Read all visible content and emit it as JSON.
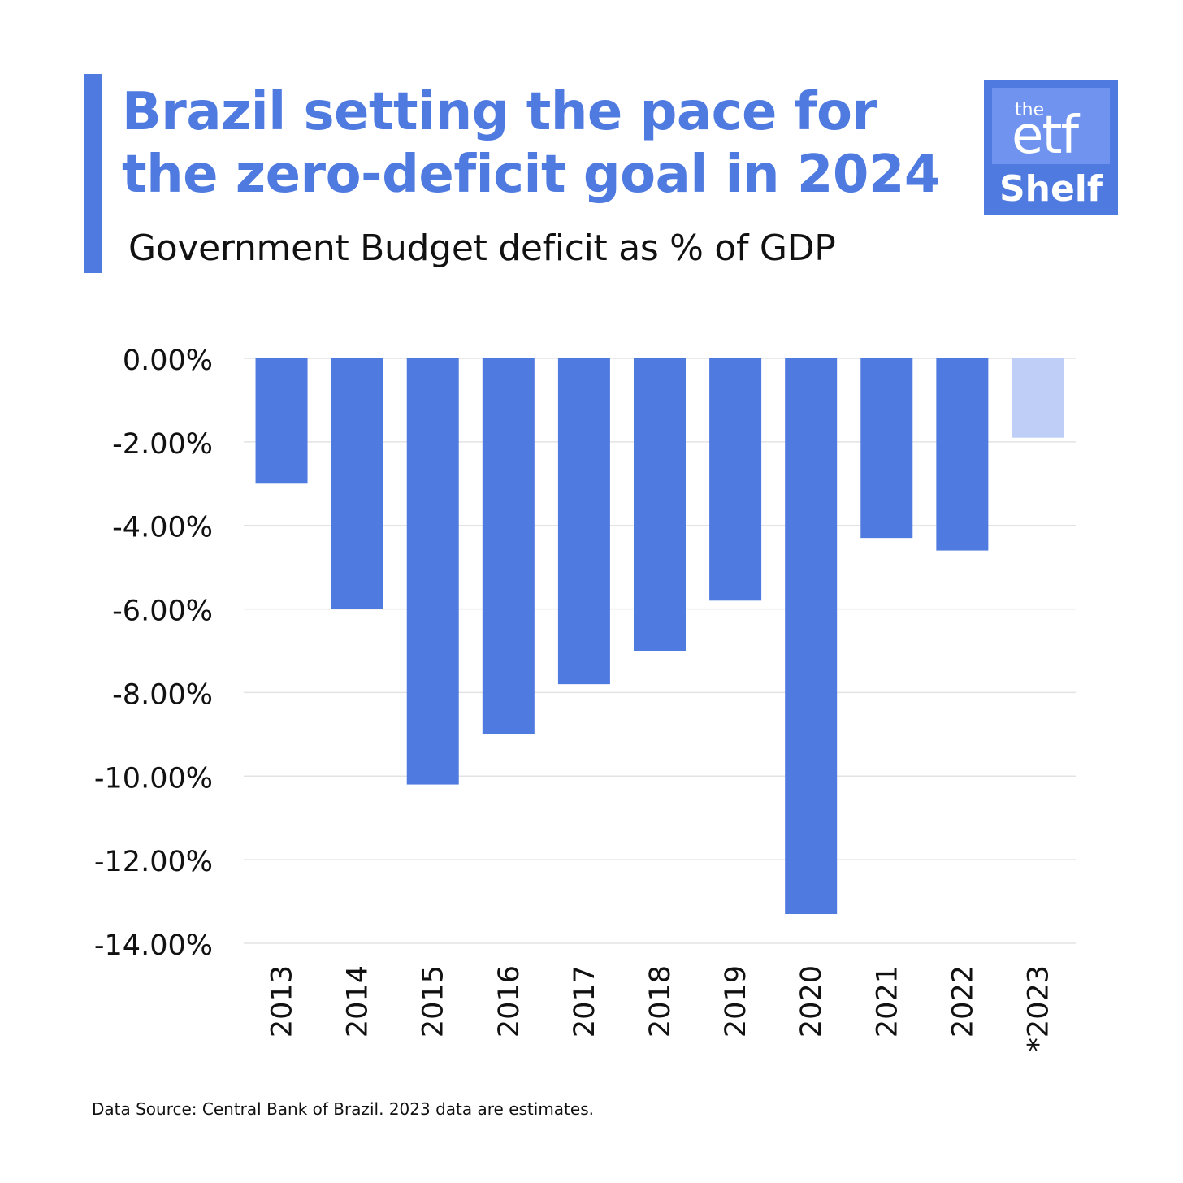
{
  "header": {
    "title_line1": "Brazil setting the pace for",
    "title_line2": "the zero-deficit goal in 2024",
    "subtitle": "Government Budget deficit as % of GDP"
  },
  "logo": {
    "the": "the",
    "etf": "etf",
    "shelf": "Shelf"
  },
  "footnote": "Data Source: Central Bank of Brazil. 2023 data are estimates.",
  "colors": {
    "accent": "#4f7ae0",
    "estimate": "#bfcef6",
    "grid": "#e3e3e3",
    "text": "#111111"
  },
  "chart_data": {
    "type": "bar",
    "title": "",
    "xlabel": "",
    "ylabel": "",
    "categories": [
      "2013",
      "2014",
      "2015",
      "2016",
      "2017",
      "2018",
      "2019",
      "2020",
      "2021",
      "2022",
      "*2023"
    ],
    "values": [
      -3.0,
      -6.0,
      -10.2,
      -9.0,
      -7.8,
      -7.0,
      -5.8,
      -13.3,
      -4.3,
      -4.6,
      -1.9
    ],
    "estimated": [
      false,
      false,
      false,
      false,
      false,
      false,
      false,
      false,
      false,
      false,
      true
    ],
    "ylim": [
      -14,
      0
    ],
    "yticks": [
      0,
      -2,
      -4,
      -6,
      -8,
      -10,
      -12,
      -14
    ],
    "ytick_labels": [
      "0.00%",
      "-2.00%",
      "-4.00%",
      "-6.00%",
      "-8.00%",
      "-10.00%",
      "-12.00%",
      "-14.00%"
    ],
    "grid": true,
    "legend": "none",
    "x_tick_rotation": "vertical"
  }
}
